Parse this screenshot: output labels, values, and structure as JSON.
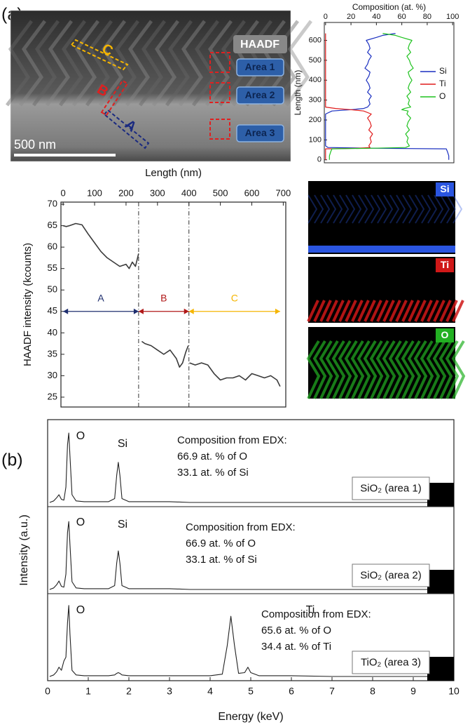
{
  "figure": {
    "panel_a": "(a)",
    "panel_b": "(b)"
  },
  "micrograph": {
    "mode": "HAADF",
    "areas": [
      "Area 1",
      "Area 2",
      "Area 3"
    ],
    "scale_bar": "500 nm",
    "segments": [
      "A",
      "B",
      "C"
    ]
  },
  "maps": [
    {
      "element": "Si",
      "color": "#2a55e0"
    },
    {
      "element": "Ti",
      "color": "#d01818"
    },
    {
      "element": "O",
      "color": "#22b022"
    }
  ],
  "chart_data": [
    {
      "type": "line",
      "xlabel": "Composition (at. %)",
      "ylabel": "Length (nm)",
      "xlim": [
        -1,
        101
      ],
      "xticks": [
        0,
        20,
        40,
        60,
        80,
        100
      ],
      "ylim": [
        -15,
        690
      ],
      "yticks": [
        0,
        100,
        200,
        300,
        400,
        500,
        600
      ],
      "legend": "right",
      "y": [
        0,
        20,
        40,
        55,
        58,
        62,
        70,
        90,
        110,
        130,
        150,
        170,
        190,
        210,
        230,
        245,
        252,
        258,
        265,
        280,
        300,
        320,
        340,
        360,
        380,
        400,
        420,
        440,
        460,
        480,
        500,
        520,
        540,
        560,
        580,
        600,
        615,
        625,
        635
      ],
      "series": [
        {
          "name": "Si",
          "color": "#1a2fc0",
          "values": [
            97,
            97,
            96,
            95,
            40,
            2,
            0,
            0,
            0,
            0,
            0,
            0,
            0,
            0,
            0,
            5,
            20,
            30,
            33,
            35,
            34,
            36,
            33,
            35,
            34,
            32,
            34,
            35,
            31,
            33,
            34,
            36,
            33,
            35,
            34,
            32,
            40,
            45,
            55
          ]
        },
        {
          "name": "Ti",
          "color": "#e01b1b",
          "values": [
            0,
            0,
            0,
            0,
            25,
            35,
            34,
            36,
            35,
            37,
            34,
            36,
            35,
            33,
            36,
            30,
            20,
            8,
            0,
            0,
            0,
            0,
            0,
            0,
            0,
            0,
            0,
            0,
            0,
            0,
            0,
            0,
            0,
            0,
            0,
            0,
            0,
            0,
            0
          ]
        },
        {
          "name": "O",
          "color": "#1fc21f",
          "values": [
            3,
            3,
            4,
            5,
            35,
            63,
            66,
            64,
            65,
            63,
            66,
            64,
            65,
            67,
            64,
            65,
            60,
            62,
            67,
            65,
            66,
            64,
            67,
            65,
            66,
            68,
            66,
            65,
            69,
            67,
            66,
            64,
            67,
            65,
            66,
            68,
            60,
            55,
            45
          ]
        }
      ]
    },
    {
      "type": "line",
      "xlabel": "Length (nm)",
      "ylabel": "HAADF intensity (kcounts)",
      "xlim": [
        -7,
        708
      ],
      "xticks": [
        0,
        100,
        200,
        300,
        400,
        500,
        600,
        700
      ],
      "ylim": [
        22.7,
        70.5
      ],
      "yticks": [
        25,
        30,
        35,
        40,
        45,
        50,
        55,
        60,
        65,
        70
      ],
      "x": [
        0,
        10,
        20,
        40,
        60,
        80,
        100,
        120,
        140,
        160,
        180,
        200,
        210,
        220,
        230,
        240,
        245,
        250,
        260,
        280,
        300,
        320,
        340,
        360,
        370,
        380,
        390,
        398,
        400,
        402,
        420,
        440,
        460,
        480,
        500,
        520,
        540,
        560,
        580,
        600,
        620,
        640,
        660,
        680,
        690
      ],
      "series": [
        {
          "color": "#3a3a3a",
          "values": [
            65,
            64.8,
            65,
            65.5,
            65.2,
            63,
            61,
            59,
            57.5,
            56.5,
            55.5,
            56,
            55,
            56.5,
            55.5,
            58.5,
            null,
            38,
            37.5,
            37,
            36,
            35,
            36,
            34,
            32,
            33,
            35.5,
            37,
            null,
            33,
            32.5,
            33,
            32.5,
            30.5,
            29,
            29.5,
            29.5,
            30,
            29,
            30.5,
            30,
            29.5,
            30,
            29,
            27.5
          ]
        }
      ],
      "dividers": [
        240,
        400
      ],
      "regions": [
        {
          "label": "A",
          "start": 0,
          "end": 240,
          "level": 45,
          "color": "#1f2f6f"
        },
        {
          "label": "B",
          "start": 240,
          "end": 400,
          "level": 45,
          "color": "#b01818"
        },
        {
          "label": "C",
          "start": 400,
          "end": 690,
          "level": 45,
          "color": "#f5b500"
        }
      ]
    },
    {
      "type": "line",
      "xlabel": "Energy (keV)",
      "ylabel": "Intensity (a.u.)",
      "xlim": [
        0,
        10
      ],
      "xticks": [
        0,
        1,
        2,
        3,
        4,
        5,
        6,
        7,
        8,
        9,
        10
      ],
      "ylim": [
        0,
        100
      ],
      "x": [
        0.05,
        0.15,
        0.22,
        0.28,
        0.34,
        0.4,
        0.45,
        0.49,
        0.52,
        0.55,
        0.6,
        0.7,
        0.9,
        1.2,
        1.5,
        1.65,
        1.7,
        1.74,
        1.78,
        1.83,
        2.0,
        2.5,
        3,
        3.5,
        4,
        4.3,
        4.42,
        4.51,
        4.6,
        4.7,
        4.85,
        4.93,
        5.0,
        5.2,
        5.5,
        6,
        7,
        8,
        9,
        10
      ],
      "series": [
        {
          "name": "SiO₂ (area 1)",
          "color": "#222",
          "peaks": [
            "O",
            "Si"
          ],
          "composition": [
            "Composition from EDX:",
            "66.9 at. % of O",
            "33.1 at. % of Si"
          ],
          "values": [
            0,
            2,
            6,
            10,
            4,
            3,
            20,
            75,
            90,
            60,
            10,
            2,
            1,
            1,
            1,
            5,
            35,
            52,
            35,
            5,
            1,
            1,
            1,
            0,
            0,
            0,
            0,
            0,
            0,
            0,
            0,
            0,
            0,
            0,
            0,
            0,
            0,
            0,
            0,
            0
          ]
        },
        {
          "name": "SiO₂ (area 2)",
          "color": "#222",
          "peaks": [
            "O",
            "Si"
          ],
          "composition": [
            "Composition from EDX:",
            "66.9 at. % of O",
            "33.1 at. % of Si"
          ],
          "values": [
            0,
            2,
            6,
            11,
            4,
            3,
            20,
            74,
            88,
            58,
            10,
            2,
            1,
            1,
            1,
            5,
            34,
            50,
            34,
            5,
            1,
            1,
            1,
            0,
            0,
            0,
            0,
            0,
            0,
            0,
            0,
            0,
            0,
            0,
            0,
            0,
            0,
            0,
            0,
            0
          ]
        },
        {
          "name": "TiO₂ (area 3)",
          "color": "#222",
          "peaks": [
            "O",
            "Ti"
          ],
          "composition": [
            "Composition from EDX:",
            "65.6 at. % of O",
            "34.4 at. % of Ti"
          ],
          "values": [
            0,
            2,
            6,
            12,
            8,
            20,
            25,
            70,
            92,
            55,
            8,
            2,
            1,
            1,
            1,
            2,
            4,
            5,
            4,
            2,
            1,
            1,
            1,
            1,
            1,
            3,
            40,
            78,
            40,
            4,
            5,
            12,
            5,
            1,
            1,
            1,
            0,
            0,
            0,
            0
          ]
        }
      ]
    }
  ]
}
